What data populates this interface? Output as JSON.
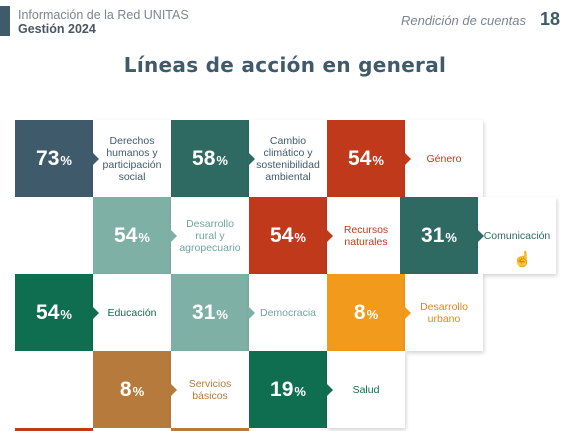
{
  "header": {
    "line1": "Información de la Red UNITAS",
    "line2": "Gestión 2024",
    "right": "Rendición de cuentas",
    "page": "18"
  },
  "title": "Líneas de acción en general",
  "items": [
    {
      "pct": "73",
      "label": "Derechos humanos y participación social",
      "color": "#3f5a6b",
      "label_color": "#3f5a6b"
    },
    {
      "pct": "58",
      "label": "Cambio climático y sostenibilidad ambiental",
      "color": "#2e6a61",
      "label_color": "#3f5a6b"
    },
    {
      "pct": "54",
      "label": "Género",
      "color": "#c0391b",
      "label_color": "#c0391b"
    },
    {
      "pct": "54",
      "label": "Desarrollo rural y agropecuario",
      "color": "#7fb0a6",
      "label_color": "#6ea79c"
    },
    {
      "pct": "54",
      "label": "Recursos naturales",
      "color": "#c0391b",
      "label_color": "#c0391b"
    },
    {
      "pct": "31",
      "label": "Comunicación",
      "color": "#2e6a61",
      "label_color": "#2e6a61"
    },
    {
      "pct": "54",
      "label": "Educación",
      "color": "#0f6e4f",
      "label_color": "#0f6e4f"
    },
    {
      "pct": "31",
      "label": "Democracia",
      "color": "#7fb0a6",
      "label_color": "#6ea79c"
    },
    {
      "pct": "8",
      "label": "Desarrollo urbano",
      "color": "#f29a1c",
      "label_color": "#e08a12"
    },
    {
      "pct": "8",
      "label": "Servicios básicos",
      "color": "#b67a3d",
      "label_color": "#b67a3d"
    },
    {
      "pct": "19",
      "label": "Salud",
      "color": "#0f6e4f",
      "label_color": "#0f6e4f"
    }
  ],
  "percent_symbol": "%"
}
